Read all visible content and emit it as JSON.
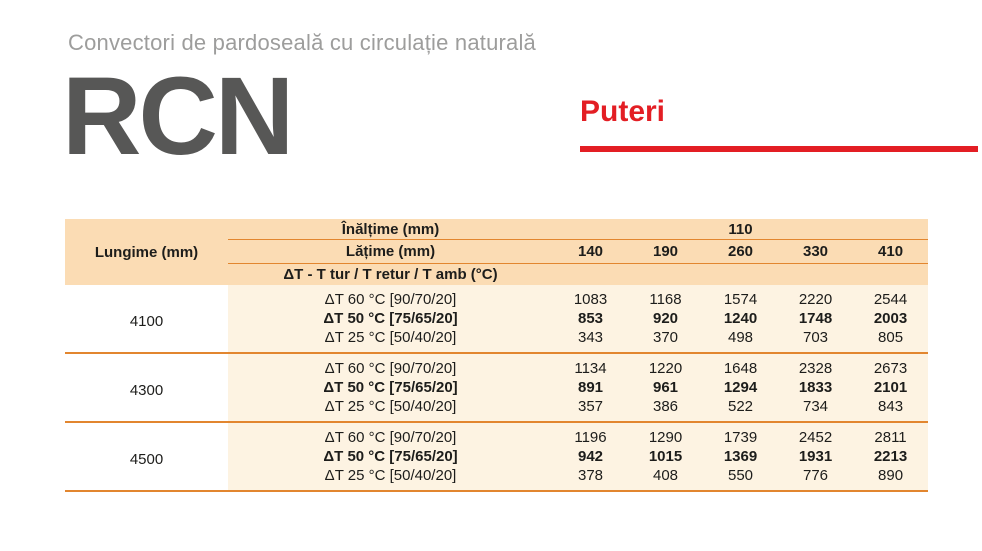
{
  "page": {
    "subtitle": "Convectori de pardoseală cu circulație naturală",
    "product_code": "RCN",
    "section_title": "Puteri"
  },
  "colors": {
    "accent_red": "#e31e24",
    "table_header_bg": "#fbdcb4",
    "table_body_bg": "#fdf3e2",
    "table_line_orange": "#e2862f",
    "product_code_gray": "#575756",
    "subtitle_gray": "#9d9d9c"
  },
  "table": {
    "length_header": "Lungime (mm)",
    "height_header": "Înălțime (mm)",
    "height_value": "110",
    "width_header": "Lățime (mm)",
    "width_values": [
      "140",
      "190",
      "260",
      "330",
      "410"
    ],
    "dt_header": "ΔT - T tur / T retur / T amb (°C)",
    "groups": [
      {
        "lungime": "4100",
        "rows": [
          {
            "label": "ΔT 60 °C [90/70/20]",
            "values": [
              "1083",
              "1168",
              "1574",
              "2220",
              "2544"
            ]
          },
          {
            "label": "ΔT 50 °C [75/65/20]",
            "values": [
              "853",
              "920",
              "1240",
              "1748",
              "2003"
            ]
          },
          {
            "label": "ΔT 25 °C [50/40/20]",
            "values": [
              "343",
              "370",
              "498",
              "703",
              "805"
            ]
          }
        ]
      },
      {
        "lungime": "4300",
        "rows": [
          {
            "label": "ΔT 60 °C [90/70/20]",
            "values": [
              "1134",
              "1220",
              "1648",
              "2328",
              "2673"
            ]
          },
          {
            "label": "ΔT 50 °C [75/65/20]",
            "values": [
              "891",
              "961",
              "1294",
              "1833",
              "2101"
            ]
          },
          {
            "label": "ΔT 25 °C [50/40/20]",
            "values": [
              "357",
              "386",
              "522",
              "734",
              "843"
            ]
          }
        ]
      },
      {
        "lungime": "4500",
        "rows": [
          {
            "label": "ΔT 60 °C [90/70/20]",
            "values": [
              "1196",
              "1290",
              "1739",
              "2452",
              "2811"
            ]
          },
          {
            "label": "ΔT 50 °C [75/65/20]",
            "values": [
              "942",
              "1015",
              "1369",
              "1931",
              "2213"
            ]
          },
          {
            "label": "ΔT 25 °C [50/40/20]",
            "values": [
              "378",
              "408",
              "550",
              "776",
              "890"
            ]
          }
        ]
      }
    ]
  }
}
